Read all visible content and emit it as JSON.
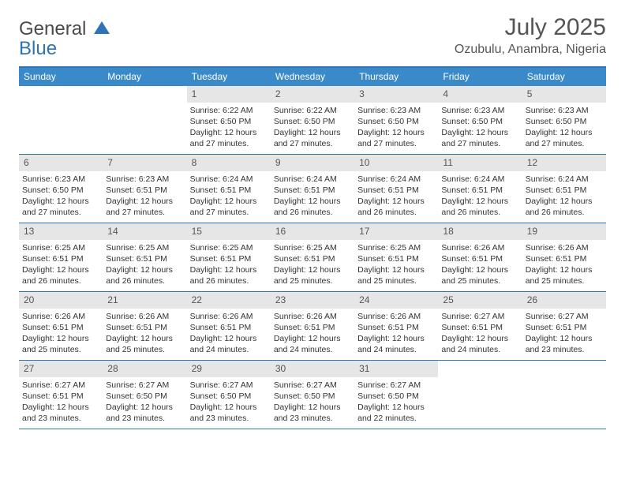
{
  "brand": {
    "line1": "General",
    "line2": "Blue"
  },
  "title": "July 2025",
  "location": "Ozubulu, Anambra, Nigeria",
  "colors": {
    "accent": "#2e74b5",
    "header_bg": "#3a8ac9",
    "daynum_bg": "#e6e6e6",
    "text": "#333333",
    "muted": "#555555"
  },
  "day_names": [
    "Sunday",
    "Monday",
    "Tuesday",
    "Wednesday",
    "Thursday",
    "Friday",
    "Saturday"
  ],
  "weeks": [
    [
      {
        "n": null
      },
      {
        "n": null
      },
      {
        "n": 1,
        "rise": "6:22 AM",
        "set": "6:50 PM",
        "day": "12 hours and 27 minutes."
      },
      {
        "n": 2,
        "rise": "6:22 AM",
        "set": "6:50 PM",
        "day": "12 hours and 27 minutes."
      },
      {
        "n": 3,
        "rise": "6:23 AM",
        "set": "6:50 PM",
        "day": "12 hours and 27 minutes."
      },
      {
        "n": 4,
        "rise": "6:23 AM",
        "set": "6:50 PM",
        "day": "12 hours and 27 minutes."
      },
      {
        "n": 5,
        "rise": "6:23 AM",
        "set": "6:50 PM",
        "day": "12 hours and 27 minutes."
      }
    ],
    [
      {
        "n": 6,
        "rise": "6:23 AM",
        "set": "6:50 PM",
        "day": "12 hours and 27 minutes."
      },
      {
        "n": 7,
        "rise": "6:23 AM",
        "set": "6:51 PM",
        "day": "12 hours and 27 minutes."
      },
      {
        "n": 8,
        "rise": "6:24 AM",
        "set": "6:51 PM",
        "day": "12 hours and 27 minutes."
      },
      {
        "n": 9,
        "rise": "6:24 AM",
        "set": "6:51 PM",
        "day": "12 hours and 26 minutes."
      },
      {
        "n": 10,
        "rise": "6:24 AM",
        "set": "6:51 PM",
        "day": "12 hours and 26 minutes."
      },
      {
        "n": 11,
        "rise": "6:24 AM",
        "set": "6:51 PM",
        "day": "12 hours and 26 minutes."
      },
      {
        "n": 12,
        "rise": "6:24 AM",
        "set": "6:51 PM",
        "day": "12 hours and 26 minutes."
      }
    ],
    [
      {
        "n": 13,
        "rise": "6:25 AM",
        "set": "6:51 PM",
        "day": "12 hours and 26 minutes."
      },
      {
        "n": 14,
        "rise": "6:25 AM",
        "set": "6:51 PM",
        "day": "12 hours and 26 minutes."
      },
      {
        "n": 15,
        "rise": "6:25 AM",
        "set": "6:51 PM",
        "day": "12 hours and 26 minutes."
      },
      {
        "n": 16,
        "rise": "6:25 AM",
        "set": "6:51 PM",
        "day": "12 hours and 25 minutes."
      },
      {
        "n": 17,
        "rise": "6:25 AM",
        "set": "6:51 PM",
        "day": "12 hours and 25 minutes."
      },
      {
        "n": 18,
        "rise": "6:26 AM",
        "set": "6:51 PM",
        "day": "12 hours and 25 minutes."
      },
      {
        "n": 19,
        "rise": "6:26 AM",
        "set": "6:51 PM",
        "day": "12 hours and 25 minutes."
      }
    ],
    [
      {
        "n": 20,
        "rise": "6:26 AM",
        "set": "6:51 PM",
        "day": "12 hours and 25 minutes."
      },
      {
        "n": 21,
        "rise": "6:26 AM",
        "set": "6:51 PM",
        "day": "12 hours and 25 minutes."
      },
      {
        "n": 22,
        "rise": "6:26 AM",
        "set": "6:51 PM",
        "day": "12 hours and 24 minutes."
      },
      {
        "n": 23,
        "rise": "6:26 AM",
        "set": "6:51 PM",
        "day": "12 hours and 24 minutes."
      },
      {
        "n": 24,
        "rise": "6:26 AM",
        "set": "6:51 PM",
        "day": "12 hours and 24 minutes."
      },
      {
        "n": 25,
        "rise": "6:27 AM",
        "set": "6:51 PM",
        "day": "12 hours and 24 minutes."
      },
      {
        "n": 26,
        "rise": "6:27 AM",
        "set": "6:51 PM",
        "day": "12 hours and 23 minutes."
      }
    ],
    [
      {
        "n": 27,
        "rise": "6:27 AM",
        "set": "6:51 PM",
        "day": "12 hours and 23 minutes."
      },
      {
        "n": 28,
        "rise": "6:27 AM",
        "set": "6:50 PM",
        "day": "12 hours and 23 minutes."
      },
      {
        "n": 29,
        "rise": "6:27 AM",
        "set": "6:50 PM",
        "day": "12 hours and 23 minutes."
      },
      {
        "n": 30,
        "rise": "6:27 AM",
        "set": "6:50 PM",
        "day": "12 hours and 23 minutes."
      },
      {
        "n": 31,
        "rise": "6:27 AM",
        "set": "6:50 PM",
        "day": "12 hours and 22 minutes."
      },
      {
        "n": null
      },
      {
        "n": null
      }
    ]
  ],
  "labels": {
    "sunrise": "Sunrise:",
    "sunset": "Sunset:",
    "daylight": "Daylight:"
  }
}
